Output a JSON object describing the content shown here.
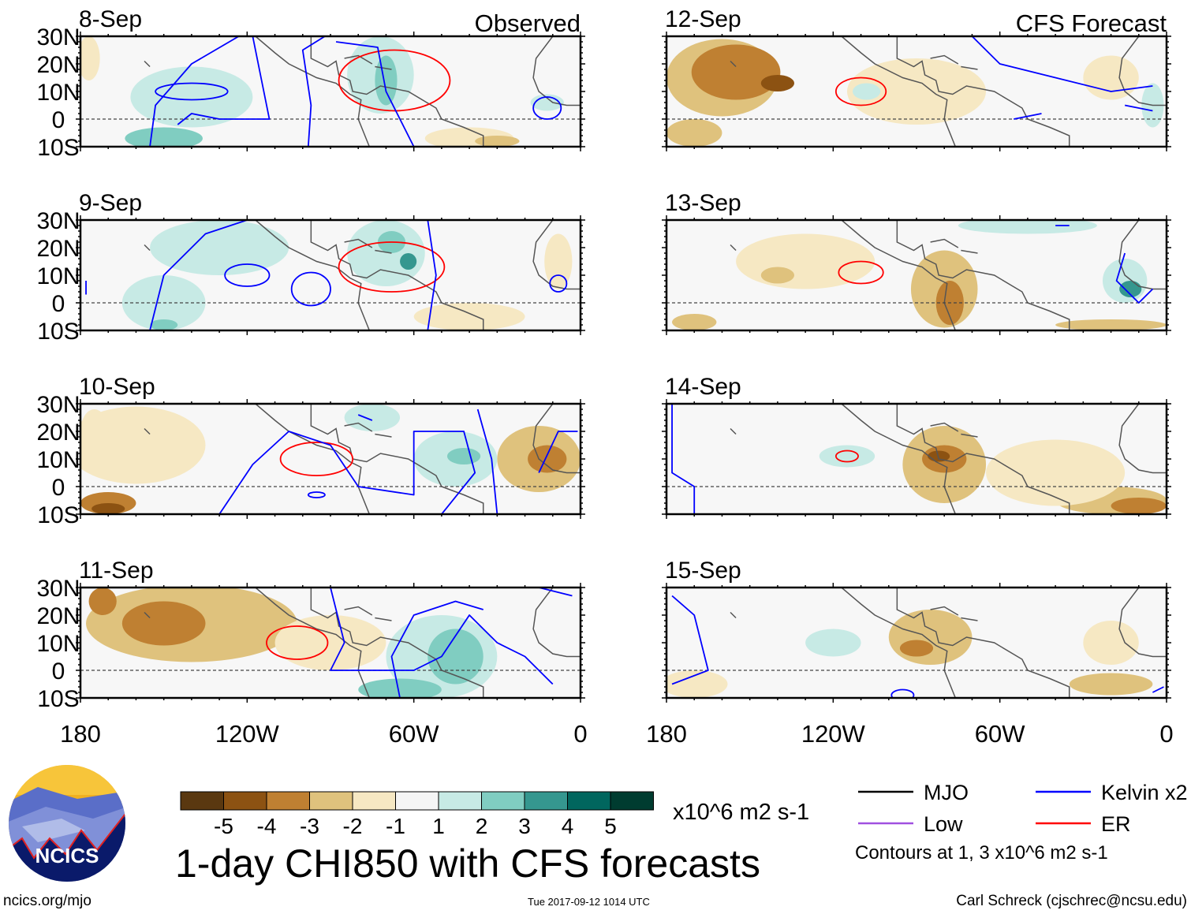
{
  "chart_data": {
    "type": "heatmap",
    "title": "1-day CHI850 with CFS forecasts",
    "units": "x10^6 m2 s-1",
    "columns": [
      {
        "label": "Observed"
      },
      {
        "label": "CFS Forecast"
      }
    ],
    "lon_ticks": [
      {
        "lon": -180,
        "label": "180"
      },
      {
        "lon": -120,
        "label": "120W"
      },
      {
        "lon": -60,
        "label": "60W"
      },
      {
        "lon": 0,
        "label": "0"
      }
    ],
    "lat_ticks": [
      {
        "lat": 30,
        "label": "30N"
      },
      {
        "lat": 20,
        "label": "20N"
      },
      {
        "lat": 10,
        "label": "10N"
      },
      {
        "lat": 0,
        "label": "0"
      },
      {
        "lat": -10,
        "label": "10S"
      }
    ],
    "lon_range": [
      -180,
      0
    ],
    "lat_range": [
      -10,
      30
    ],
    "colorbar": {
      "labels": [
        "-5",
        "-4",
        "-3",
        "-2",
        "-1",
        "1",
        "2",
        "3",
        "4",
        "5"
      ],
      "colors": [
        "#5a3810",
        "#8c5212",
        "#bf8032",
        "#dfc27d",
        "#f6e8c3",
        "#f5f5f5",
        "#c7eae5",
        "#80cdc1",
        "#35978f",
        "#01665e",
        "#003c30"
      ]
    },
    "legend": [
      {
        "label": "MJO",
        "color": "#000000"
      },
      {
        "label": "Kelvin x2",
        "color": "#0000ff"
      },
      {
        "label": "Low",
        "color": "#a050e0"
      },
      {
        "label": "ER",
        "color": "#ff0000"
      }
    ],
    "contour_note": "Contours at 1, 3 x10^6 m2 s-1",
    "panels": [
      {
        "date": "8-Sep",
        "col": 0,
        "row": 0,
        "blobs": [
          [
            -140,
            8,
            22,
            11,
            1
          ],
          [
            -150,
            -7,
            14,
            4,
            2
          ],
          [
            -72,
            16,
            12,
            14,
            1
          ],
          [
            -70,
            14,
            4,
            9,
            2
          ],
          [
            -12,
            6,
            6,
            3,
            1
          ],
          [
            -40,
            -7,
            16,
            4,
            -1
          ],
          [
            -30,
            -8,
            8,
            2,
            -2
          ],
          [
            -177,
            22,
            4,
            8,
            -1
          ]
        ],
        "ellipses": [
          [
            -140,
            10,
            13,
            3,
            "b"
          ],
          [
            -67,
            14,
            20,
            11,
            "r"
          ],
          [
            -12,
            4,
            5,
            4,
            "b"
          ]
        ],
        "lines": [
          [
            [
              -155,
              -10
            ],
            [
              -153,
              5
            ],
            [
              -140,
              20
            ],
            [
              -123,
              30
            ]
          ],
          [
            [
              -118,
              30
            ],
            [
              -115,
              15
            ],
            [
              -112,
              0
            ],
            [
              -130,
              0
            ],
            [
              -140,
              2
            ],
            [
              -145,
              -2
            ]
          ],
          [
            [
              -92,
              30
            ],
            [
              -100,
              25
            ],
            [
              -97,
              5
            ],
            [
              -98,
              -10
            ]
          ],
          [
            [
              -88,
              28
            ],
            [
              -73,
              26
            ],
            [
              -70,
              10
            ],
            [
              -60,
              -10
            ]
          ]
        ]
      },
      {
        "date": "12-Sep",
        "col": 1,
        "row": 0,
        "blobs": [
          [
            -160,
            15,
            20,
            14,
            -2
          ],
          [
            -155,
            17,
            16,
            10,
            -3
          ],
          [
            -140,
            13,
            6,
            3,
            -4
          ],
          [
            -170,
            -5,
            10,
            5,
            -2
          ],
          [
            -90,
            10,
            25,
            12,
            -1
          ],
          [
            -108,
            10,
            5,
            3,
            1
          ],
          [
            -20,
            15,
            10,
            8,
            -1
          ],
          [
            -5,
            5,
            4,
            8,
            1
          ]
        ],
        "ellipses": [
          [
            -110,
            10,
            9,
            5,
            "r"
          ]
        ],
        "lines": [
          [
            [
              -70,
              30
            ],
            [
              -60,
              20
            ],
            [
              -40,
              15
            ],
            [
              -20,
              10
            ],
            [
              -5,
              12
            ]
          ],
          [
            [
              -55,
              0
            ],
            [
              -45,
              2
            ]
          ],
          [
            [
              -15,
              5
            ],
            [
              -5,
              3
            ]
          ]
        ]
      },
      {
        "date": "9-Sep",
        "col": 0,
        "row": 1,
        "blobs": [
          [
            -130,
            20,
            25,
            10,
            1
          ],
          [
            -150,
            0,
            15,
            10,
            1
          ],
          [
            -70,
            18,
            14,
            12,
            1
          ],
          [
            -68,
            22,
            5,
            4,
            2
          ],
          [
            -62,
            15,
            3,
            3,
            3
          ],
          [
            -150,
            -8,
            5,
            2,
            2
          ],
          [
            -40,
            -5,
            20,
            5,
            -1
          ],
          [
            -8,
            15,
            5,
            10,
            -1
          ]
        ],
        "ellipses": [
          [
            -120,
            10,
            8,
            4,
            "b"
          ],
          [
            -68,
            13,
            19,
            9,
            "r"
          ],
          [
            -97,
            5,
            7,
            6,
            "b"
          ],
          [
            -8,
            7,
            3,
            3,
            "b"
          ]
        ],
        "lines": [
          [
            [
              -155,
              -10
            ],
            [
              -150,
              10
            ],
            [
              -135,
              25
            ],
            [
              -120,
              30
            ]
          ],
          [
            [
              -55,
              30
            ],
            [
              -52,
              10
            ],
            [
              -55,
              -10
            ]
          ],
          [
            [
              -178,
              8
            ],
            [
              -178,
              3
            ]
          ]
        ]
      },
      {
        "date": "13-Sep",
        "col": 1,
        "row": 1,
        "blobs": [
          [
            -130,
            15,
            25,
            10,
            -1
          ],
          [
            -140,
            10,
            6,
            3,
            -2
          ],
          [
            -80,
            5,
            12,
            14,
            -2
          ],
          [
            -78,
            0,
            5,
            8,
            -3
          ],
          [
            -170,
            -7,
            8,
            3,
            -2
          ],
          [
            -20,
            -8,
            20,
            2,
            -2
          ],
          [
            -15,
            8,
            8,
            8,
            1
          ],
          [
            -13,
            5,
            4,
            3,
            3
          ],
          [
            -50,
            28,
            25,
            3,
            1
          ]
        ],
        "ellipses": [
          [
            -110,
            11,
            8,
            4,
            "r"
          ]
        ],
        "lines": [
          [
            [
              -40,
              28
            ],
            [
              -35,
              28
            ]
          ],
          [
            [
              -15,
              18
            ],
            [
              -18,
              8
            ],
            [
              -10,
              0
            ],
            [
              -5,
              5
            ]
          ]
        ]
      },
      {
        "date": "10-Sep",
        "col": 0,
        "row": 2,
        "blobs": [
          [
            -160,
            15,
            25,
            14,
            -1
          ],
          [
            -170,
            -6,
            10,
            4,
            -3
          ],
          [
            -170,
            -8,
            6,
            2,
            -4
          ],
          [
            -15,
            10,
            15,
            12,
            -2
          ],
          [
            -12,
            10,
            7,
            5,
            -3
          ],
          [
            -45,
            10,
            15,
            10,
            1
          ],
          [
            -42,
            11,
            6,
            3,
            2
          ],
          [
            -75,
            25,
            10,
            5,
            1
          ],
          [
            -175,
            20,
            5,
            8,
            -1
          ]
        ],
        "ellipses": [
          [
            -95,
            10,
            13,
            6,
            "r"
          ],
          [
            -95,
            -3,
            3,
            1,
            "b"
          ]
        ],
        "lines": [
          [
            [
              -130,
              -10
            ],
            [
              -118,
              8
            ],
            [
              -105,
              20
            ],
            [
              -90,
              15
            ],
            [
              -80,
              0
            ],
            [
              -60,
              -3
            ],
            [
              -60,
              20
            ],
            [
              -42,
              20
            ],
            [
              -38,
              5
            ],
            [
              -50,
              -10
            ]
          ],
          [
            [
              -37,
              28
            ],
            [
              -32,
              10
            ],
            [
              -30,
              -10
            ]
          ],
          [
            [
              -15,
              5
            ],
            [
              -8,
              20
            ],
            [
              -1,
              20
            ]
          ],
          [
            [
              -80,
              26
            ],
            [
              -75,
              24
            ]
          ]
        ]
      },
      {
        "date": "14-Sep",
        "col": 1,
        "row": 2,
        "blobs": [
          [
            -80,
            8,
            15,
            14,
            -2
          ],
          [
            -80,
            10,
            8,
            5,
            -3
          ],
          [
            -82,
            11,
            4,
            2,
            -4
          ],
          [
            -20,
            -5,
            20,
            5,
            -2
          ],
          [
            -10,
            -7,
            10,
            3,
            -3
          ],
          [
            -115,
            11,
            10,
            4,
            1
          ],
          [
            -25,
            8,
            5,
            5,
            1
          ],
          [
            -25,
            7,
            2,
            2,
            2
          ],
          [
            -40,
            5,
            25,
            12,
            -1
          ]
        ],
        "ellipses": [
          [
            -115,
            11,
            4,
            2,
            "r"
          ]
        ],
        "lines": [
          [
            [
              -178,
              30
            ],
            [
              -178,
              5
            ],
            [
              -170,
              0
            ],
            [
              -170,
              -10
            ]
          ]
        ]
      },
      {
        "date": "11-Sep",
        "col": 0,
        "row": 3,
        "blobs": [
          [
            -140,
            17,
            38,
            14,
            -2
          ],
          [
            -150,
            17,
            15,
            8,
            -3
          ],
          [
            -172,
            25,
            5,
            5,
            -3
          ],
          [
            -50,
            5,
            20,
            15,
            1
          ],
          [
            -45,
            5,
            10,
            10,
            2
          ],
          [
            -65,
            -7,
            15,
            4,
            2
          ],
          [
            -90,
            10,
            20,
            10,
            -1
          ]
        ],
        "ellipses": [
          [
            -102,
            10,
            11,
            6,
            "r"
          ]
        ],
        "lines": [
          [
            [
              -90,
              30
            ],
            [
              -85,
              10
            ],
            [
              -90,
              0
            ],
            [
              -60,
              0
            ],
            [
              -50,
              5
            ],
            [
              -40,
              20
            ],
            [
              -30,
              10
            ],
            [
              -20,
              5
            ],
            [
              -10,
              -5
            ]
          ],
          [
            [
              -65,
              -10
            ],
            [
              -68,
              5
            ],
            [
              -60,
              20
            ],
            [
              -45,
              25
            ],
            [
              -35,
              22
            ]
          ],
          [
            [
              -15,
              30
            ],
            [
              -3,
              27
            ]
          ]
        ]
      },
      {
        "date": "15-Sep",
        "col": 1,
        "row": 3,
        "blobs": [
          [
            -85,
            12,
            15,
            10,
            -2
          ],
          [
            -90,
            8,
            6,
            3,
            -3
          ],
          [
            -120,
            10,
            10,
            5,
            1
          ],
          [
            -20,
            -5,
            15,
            4,
            -2
          ],
          [
            -20,
            10,
            10,
            8,
            -1
          ],
          [
            -170,
            -5,
            12,
            5,
            -1
          ]
        ],
        "ellipses": [
          [
            -95,
            -9,
            4,
            2,
            "b"
          ]
        ],
        "lines": [
          [
            [
              -178,
              27
            ],
            [
              -170,
              20
            ],
            [
              -165,
              0
            ],
            [
              -178,
              -5
            ]
          ],
          [
            [
              -5,
              -8
            ],
            [
              -1,
              -6
            ]
          ]
        ]
      }
    ],
    "coastlines": [
      [
        [
          -117,
          30
        ],
        [
          -110,
          24
        ],
        [
          -105,
          20
        ],
        [
          -95,
          15
        ],
        [
          -88,
          13
        ],
        [
          -83,
          9
        ],
        [
          -79,
          7
        ],
        [
          -80,
          0
        ],
        [
          -78,
          -5
        ],
        [
          -76,
          -10
        ]
      ],
      [
        [
          -97,
          30
        ],
        [
          -97,
          22
        ],
        [
          -91,
          19
        ],
        [
          -88,
          21
        ],
        [
          -87,
          16
        ],
        [
          -83,
          14
        ],
        [
          -82,
          10
        ],
        [
          -77,
          9
        ],
        [
          -72,
          12
        ],
        [
          -62,
          10
        ],
        [
          -52,
          4
        ],
        [
          -50,
          0
        ],
        [
          -42,
          -3
        ],
        [
          -35,
          -6
        ],
        [
          -35,
          -10
        ]
      ],
      [
        [
          -85,
          22
        ],
        [
          -80,
          23
        ],
        [
          -75,
          20
        ]
      ],
      [
        [
          -74,
          19
        ],
        [
          -68,
          18
        ]
      ],
      [
        [
          -10,
          30
        ],
        [
          -16,
          22
        ],
        [
          -17,
          15
        ],
        [
          -15,
          10
        ],
        [
          -10,
          6
        ],
        [
          -5,
          5
        ],
        [
          0,
          5
        ]
      ],
      [
        [
          -157,
          21
        ],
        [
          -155,
          19
        ]
      ]
    ],
    "footer": {
      "left": "ncics.org/mjo",
      "center": "Tue 2017-09-12 1014 UTC",
      "right": "Carl Schreck (cjschrec@ncsu.edu)"
    },
    "logo_text": "NCICS"
  }
}
